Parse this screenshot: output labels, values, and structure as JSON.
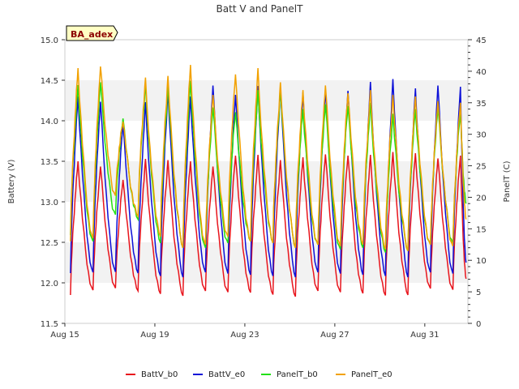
{
  "chart_data": {
    "type": "line",
    "title": "Batt V and PanelT",
    "badge": "BA_adex",
    "ylabel": "Battery (V)",
    "y2label": "PanelT (C)",
    "ylim": [
      11.5,
      15.0
    ],
    "y2lim": [
      0,
      45
    ],
    "yticks": [
      "11.5",
      "12.0",
      "12.5",
      "13.0",
      "13.5",
      "14.0",
      "14.5",
      "15.0"
    ],
    "y2ticks": [
      "0",
      "5",
      "10",
      "15",
      "20",
      "25",
      "30",
      "35",
      "40",
      "45"
    ],
    "xlim": [
      "2023-08-15",
      "2023-09-01T22:00"
    ],
    "xticks": [
      "Aug 15",
      "Aug 19",
      "Aug 23",
      "Aug 27",
      "Aug 31"
    ],
    "grid": "horizontal shaded bands",
    "legend_position": "bottom",
    "colors": {
      "BattV_b0": "#e8141c",
      "BattV_e0": "#0c10d8",
      "PanelT_b0": "#22e012",
      "PanelT_e0": "#f2a100",
      "band": "#f2f2f2",
      "badge_bg": "#ffffc4"
    },
    "series": [
      {
        "name": "BattV_b0",
        "axis": "left",
        "x": [
          "2023-08-15T06:00",
          "2023-08-15T14:00",
          "2023-08-16T06:00",
          "2023-08-16T14:00",
          "2023-08-17T06:00",
          "2023-08-17T14:00",
          "2023-08-18T06:00",
          "2023-08-18T14:00",
          "2023-08-19T06:00",
          "2023-08-19T14:00",
          "2023-08-20T06:00",
          "2023-08-20T14:00",
          "2023-08-21T06:00",
          "2023-08-21T14:00",
          "2023-08-22T06:00",
          "2023-08-22T14:00",
          "2023-08-23T06:00",
          "2023-08-23T14:00",
          "2023-08-24T06:00",
          "2023-08-24T14:00",
          "2023-08-25T06:00",
          "2023-08-25T14:00",
          "2023-08-26T06:00",
          "2023-08-26T14:00",
          "2023-08-27T06:00",
          "2023-08-27T14:00",
          "2023-08-28T06:00",
          "2023-08-28T14:00",
          "2023-08-29T06:00",
          "2023-08-29T14:00",
          "2023-08-30T06:00",
          "2023-08-30T14:00",
          "2023-08-31T06:00",
          "2023-08-31T14:00",
          "2023-09-01T06:00",
          "2023-09-01T14:00",
          "2023-09-01T20:00"
        ],
        "values": [
          11.88,
          13.5,
          11.88,
          13.45,
          11.92,
          13.3,
          11.9,
          13.5,
          11.88,
          13.5,
          11.87,
          13.5,
          11.87,
          13.45,
          11.87,
          13.6,
          11.88,
          13.55,
          11.87,
          13.5,
          11.86,
          13.55,
          11.87,
          13.6,
          11.87,
          13.6,
          11.87,
          13.55,
          11.86,
          13.6,
          11.88,
          13.6,
          11.9,
          13.55,
          11.9,
          13.6,
          12.05
        ]
      },
      {
        "name": "BattV_e0",
        "axis": "left",
        "x": [
          "2023-08-15T06:00",
          "2023-08-15T14:00",
          "2023-08-16T06:00",
          "2023-08-16T14:00",
          "2023-08-17T06:00",
          "2023-08-17T14:00",
          "2023-08-18T06:00",
          "2023-08-18T14:00",
          "2023-08-19T06:00",
          "2023-08-19T14:00",
          "2023-08-20T06:00",
          "2023-08-20T14:00",
          "2023-08-21T06:00",
          "2023-08-21T14:00",
          "2023-08-22T06:00",
          "2023-08-22T14:00",
          "2023-08-23T06:00",
          "2023-08-23T14:00",
          "2023-08-24T06:00",
          "2023-08-24T14:00",
          "2023-08-25T06:00",
          "2023-08-25T14:00",
          "2023-08-26T06:00",
          "2023-08-26T14:00",
          "2023-08-27T06:00",
          "2023-08-27T14:00",
          "2023-08-28T06:00",
          "2023-08-28T14:00",
          "2023-08-29T06:00",
          "2023-08-29T14:00",
          "2023-08-30T06:00",
          "2023-08-30T14:00",
          "2023-08-31T06:00",
          "2023-08-31T14:00",
          "2023-09-01T06:00",
          "2023-09-01T14:00",
          "2023-09-01T20:00"
        ],
        "values": [
          12.15,
          14.3,
          12.1,
          14.25,
          12.12,
          14.0,
          12.12,
          14.2,
          12.1,
          14.35,
          12.1,
          14.3,
          12.1,
          14.45,
          12.1,
          14.35,
          12.1,
          14.4,
          12.1,
          14.4,
          12.1,
          14.35,
          12.1,
          14.4,
          12.1,
          14.4,
          12.1,
          14.45,
          12.1,
          14.5,
          12.1,
          14.4,
          12.1,
          14.45,
          12.1,
          14.45,
          12.25
        ]
      },
      {
        "name": "PanelT_b0",
        "axis": "right",
        "x": [
          "2023-08-15T06:00",
          "2023-08-15T14:00",
          "2023-08-16T06:00",
          "2023-08-16T14:00",
          "2023-08-17T06:00",
          "2023-08-17T14:00",
          "2023-08-18T06:00",
          "2023-08-18T14:00",
          "2023-08-19T06:00",
          "2023-08-19T14:00",
          "2023-08-20T06:00",
          "2023-08-20T14:00",
          "2023-08-21T06:00",
          "2023-08-21T14:00",
          "2023-08-22T06:00",
          "2023-08-22T14:00",
          "2023-08-23T06:00",
          "2023-08-23T14:00",
          "2023-08-24T06:00",
          "2023-08-24T14:00",
          "2023-08-25T06:00",
          "2023-08-25T14:00",
          "2023-08-26T06:00",
          "2023-08-26T14:00",
          "2023-08-27T06:00",
          "2023-08-27T14:00",
          "2023-08-28T06:00",
          "2023-08-28T14:00",
          "2023-08-29T06:00",
          "2023-08-29T14:00",
          "2023-08-30T06:00",
          "2023-08-30T14:00",
          "2023-08-31T06:00",
          "2023-08-31T14:00",
          "2023-09-01T06:00",
          "2023-09-01T14:00",
          "2023-09-01T20:00"
        ],
        "values": [
          14.5,
          37.8,
          12.5,
          38.5,
          17.0,
          33.0,
          16.5,
          37.5,
          13.0,
          37.5,
          12.5,
          38.5,
          11.5,
          34.5,
          12.5,
          34.0,
          13.0,
          36.5,
          13.0,
          37.0,
          12.5,
          34.0,
          12.0,
          35.0,
          11.5,
          35.0,
          12.0,
          34.5,
          11.5,
          33.0,
          12.0,
          34.0,
          12.0,
          34.5,
          12.5,
          34.0,
          19.0
        ]
      },
      {
        "name": "PanelT_e0",
        "axis": "right",
        "x": [
          "2023-08-15T06:00",
          "2023-08-15T14:00",
          "2023-08-16T06:00",
          "2023-08-16T14:00",
          "2023-08-17T06:00",
          "2023-08-17T14:00",
          "2023-08-18T06:00",
          "2023-08-18T14:00",
          "2023-08-19T06:00",
          "2023-08-19T14:00",
          "2023-08-20T06:00",
          "2023-08-20T14:00",
          "2023-08-21T06:00",
          "2023-08-21T14:00",
          "2023-08-22T06:00",
          "2023-08-22T14:00",
          "2023-08-23T06:00",
          "2023-08-23T14:00",
          "2023-08-24T06:00",
          "2023-08-24T14:00",
          "2023-08-25T06:00",
          "2023-08-25T14:00",
          "2023-08-26T06:00",
          "2023-08-26T14:00",
          "2023-08-27T06:00",
          "2023-08-27T14:00",
          "2023-08-28T06:00",
          "2023-08-28T14:00",
          "2023-08-29T06:00",
          "2023-08-29T14:00",
          "2023-08-30T06:00",
          "2023-08-30T14:00",
          "2023-08-31T06:00",
          "2023-08-31T14:00",
          "2023-09-01T06:00",
          "2023-09-01T14:00",
          "2023-09-01T20:00"
        ],
        "values": [
          13.5,
          40.5,
          13.0,
          41.0,
          20.0,
          32.5,
          17.0,
          38.5,
          14.0,
          39.0,
          12.5,
          41.0,
          12.0,
          36.5,
          13.5,
          40.0,
          13.0,
          40.0,
          13.0,
          38.0,
          12.5,
          37.0,
          12.0,
          38.0,
          12.0,
          37.0,
          12.5,
          36.5,
          12.0,
          36.0,
          12.0,
          36.0,
          12.0,
          35.5,
          12.0,
          35.5,
          16.5
        ]
      }
    ]
  }
}
